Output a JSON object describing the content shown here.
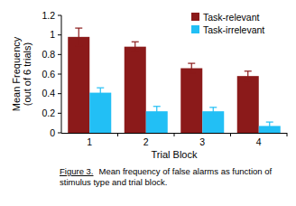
{
  "chart_data": {
    "type": "bar",
    "ylabel": "Mean Frequency\n(out of 6 trials)",
    "xlabel": "Trial Block",
    "annotations": [
      "Figure 3.",
      "Mean frequency of false alarms as function of",
      "stimulus type and trial block."
    ],
    "categories": [
      "1",
      "2",
      "3",
      "4"
    ],
    "series": [
      {
        "name": "Task-relevant",
        "color": "#8b1a1a",
        "values": [
          0.98,
          0.88,
          0.66,
          0.58
        ],
        "errors": [
          0.09,
          0.05,
          0.05,
          0.05
        ]
      },
      {
        "name": "Task-irrelevant",
        "color": "#22bff5",
        "values": [
          0.41,
          0.22,
          0.22,
          0.07
        ],
        "errors": [
          0.05,
          0.05,
          0.04,
          0.04
        ]
      }
    ],
    "ylim": [
      0,
      1.2
    ],
    "yticks": [
      0,
      0.2,
      0.4,
      0.6,
      0.8,
      1,
      1.2
    ],
    "legend": "top-right",
    "grid": false
  }
}
